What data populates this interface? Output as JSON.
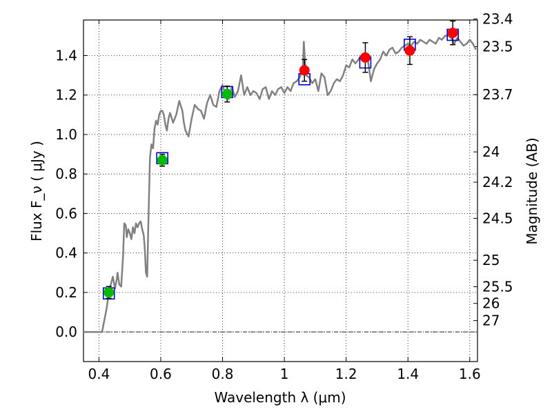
{
  "chart_data": {
    "type": "scatter",
    "xlabel": "Wavelength  λ (μm)",
    "ylabel": "Flux  F_ν  ( μJy )",
    "ylabel_right": "Magnitude (AB)",
    "xlim": [
      0.35,
      1.625
    ],
    "ylim": [
      -0.15,
      1.58
    ],
    "x_ticks": [
      0.4,
      0.6,
      0.8,
      1.0,
      1.2,
      1.4,
      1.6
    ],
    "x_tick_labels": [
      "0.4",
      "0.6",
      "0.8",
      "1",
      "1.2",
      "1.4",
      "1.6"
    ],
    "y_ticks": [
      0.0,
      0.2,
      0.4,
      0.6,
      0.8,
      1.0,
      1.2,
      1.4
    ],
    "y_tick_labels": [
      "0.0",
      "0.2",
      "0.4",
      "0.6",
      "0.8",
      "1.0",
      "1.2",
      "1.4"
    ],
    "mag_ticks": [
      23.4,
      23.5,
      23.7,
      24,
      24.2,
      24.5,
      25,
      25.5,
      26,
      27
    ],
    "mag_tick_labels": [
      "23.4",
      "23.5",
      "23.7",
      "24",
      "24.2",
      "24.5",
      "25",
      "25.5",
      "26",
      "27"
    ],
    "grid": true,
    "model_spectrum": {
      "color": "#808080",
      "x": [
        0.35,
        0.4,
        0.41,
        0.425,
        0.432,
        0.44,
        0.445,
        0.452,
        0.458,
        0.46,
        0.466,
        0.472,
        0.478,
        0.482,
        0.487,
        0.49,
        0.495,
        0.5,
        0.505,
        0.51,
        0.515,
        0.52,
        0.525,
        0.53,
        0.535,
        0.54,
        0.545,
        0.548,
        0.552,
        0.556,
        0.56,
        0.565,
        0.57,
        0.575,
        0.58,
        0.585,
        0.59,
        0.595,
        0.6,
        0.605,
        0.61,
        0.615,
        0.62,
        0.625,
        0.63,
        0.64,
        0.65,
        0.66,
        0.67,
        0.675,
        0.68,
        0.69,
        0.7,
        0.71,
        0.72,
        0.73,
        0.74,
        0.75,
        0.76,
        0.77,
        0.78,
        0.79,
        0.8,
        0.81,
        0.82,
        0.83,
        0.84,
        0.85,
        0.86,
        0.87,
        0.88,
        0.89,
        0.9,
        0.91,
        0.92,
        0.93,
        0.94,
        0.95,
        0.96,
        0.97,
        0.98,
        0.99,
        1.0,
        1.01,
        1.02,
        1.03,
        1.04,
        1.05,
        1.06,
        1.063,
        1.07,
        1.08,
        1.09,
        1.1,
        1.11,
        1.12,
        1.13,
        1.14,
        1.15,
        1.16,
        1.17,
        1.18,
        1.19,
        1.2,
        1.21,
        1.22,
        1.23,
        1.24,
        1.25,
        1.26,
        1.27,
        1.28,
        1.29,
        1.3,
        1.31,
        1.32,
        1.33,
        1.34,
        1.35,
        1.36,
        1.37,
        1.38,
        1.39,
        1.4,
        1.41,
        1.42,
        1.43,
        1.44,
        1.45,
        1.46,
        1.47,
        1.48,
        1.49,
        1.5,
        1.51,
        1.52,
        1.53,
        1.54,
        1.55,
        1.56,
        1.57,
        1.58,
        1.59,
        1.6,
        1.61,
        1.62
      ],
      "y": [
        0.0,
        0.0,
        0.0,
        0.12,
        0.2,
        0.25,
        0.28,
        0.22,
        0.27,
        0.3,
        0.24,
        0.23,
        0.38,
        0.55,
        0.54,
        0.48,
        0.52,
        0.5,
        0.47,
        0.53,
        0.5,
        0.55,
        0.53,
        0.55,
        0.56,
        0.52,
        0.49,
        0.43,
        0.3,
        0.28,
        0.55,
        0.88,
        0.95,
        0.93,
        1.03,
        1.07,
        1.05,
        1.1,
        1.12,
        1.12,
        1.1,
        1.05,
        1.02,
        1.08,
        1.11,
        1.06,
        1.1,
        1.17,
        1.12,
        1.06,
        1.02,
        0.99,
        1.08,
        1.15,
        1.13,
        1.12,
        1.08,
        1.16,
        1.2,
        1.15,
        1.14,
        1.22,
        1.25,
        1.2,
        1.18,
        1.24,
        1.19,
        1.22,
        1.3,
        1.2,
        1.24,
        1.2,
        1.22,
        1.21,
        1.18,
        1.23,
        1.24,
        1.18,
        1.22,
        1.2,
        1.23,
        1.24,
        1.21,
        1.24,
        1.22,
        1.26,
        1.27,
        1.29,
        1.34,
        1.47,
        1.3,
        1.29,
        1.26,
        1.28,
        1.22,
        1.31,
        1.29,
        1.2,
        1.22,
        1.26,
        1.28,
        1.27,
        1.3,
        1.35,
        1.34,
        1.38,
        1.36,
        1.38,
        1.4,
        1.41,
        1.38,
        1.27,
        1.33,
        1.36,
        1.38,
        1.42,
        1.4,
        1.43,
        1.44,
        1.41,
        1.42,
        1.44,
        1.45,
        1.46,
        1.45,
        1.47,
        1.46,
        1.48,
        1.47,
        1.46,
        1.48,
        1.47,
        1.46,
        1.49,
        1.48,
        1.5,
        1.5,
        1.49,
        1.46,
        1.49,
        1.47,
        1.45,
        1.46,
        1.48,
        1.46,
        1.43
      ]
    },
    "series": [
      {
        "marker": "square",
        "color": "#0000cc",
        "x": [
          0.432,
          0.605,
          0.815,
          1.065,
          1.262,
          1.406,
          1.545
        ],
        "y": [
          0.195,
          0.88,
          1.215,
          1.28,
          1.365,
          1.455,
          1.505
        ]
      },
      {
        "marker": "circle",
        "color": "#00bb00",
        "x": [
          0.432,
          0.605,
          0.815
        ],
        "y": [
          0.2,
          0.87,
          1.205
        ],
        "err": [
          0.03,
          0.03,
          0.04
        ]
      },
      {
        "marker": "circle",
        "color": "#ff0000",
        "x": [
          1.065,
          1.262,
          1.406,
          1.545
        ],
        "y": [
          1.325,
          1.39,
          1.425,
          1.515
        ],
        "err": [
          0.055,
          0.075,
          0.07,
          0.06
        ]
      }
    ]
  }
}
